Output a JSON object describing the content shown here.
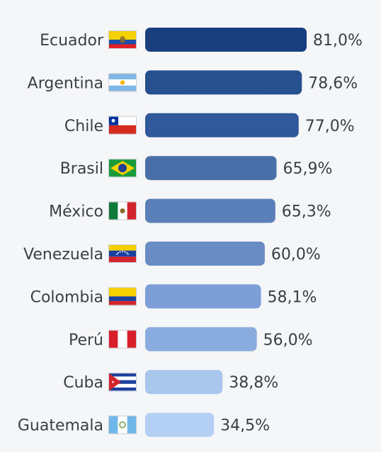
{
  "chart_data": {
    "type": "bar",
    "orientation": "horizontal",
    "title": "",
    "xlabel": "",
    "ylabel": "",
    "xlim": [
      0,
      100
    ],
    "grid": false,
    "categories": [
      "Ecuador",
      "Argentina",
      "Chile",
      "Brasil",
      "México",
      "Venezuela",
      "Colombia",
      "Perú",
      "Cuba",
      "Guatemala"
    ],
    "values": [
      81.0,
      78.6,
      77.0,
      65.9,
      65.3,
      60.0,
      58.1,
      56.0,
      38.8,
      34.5
    ],
    "value_labels": [
      "81,0%",
      "78,6%",
      "77,0%",
      "65,9%",
      "65,3%",
      "60,0%",
      "58,1%",
      "56,0%",
      "38,8%",
      "34,5%"
    ],
    "bar_colors": [
      "#1a3f7f",
      "#26508e",
      "#30589a",
      "#4a6fa8",
      "#5b7fb8",
      "#6a8cc5",
      "#7d9ed6",
      "#8aabdd",
      "#a9c6ec",
      "#b3d0f4"
    ],
    "flag_icons": [
      "flag-ecuador-icon",
      "flag-argentina-icon",
      "flag-chile-icon",
      "flag-brazil-icon",
      "flag-mexico-icon",
      "flag-venezuela-icon",
      "flag-colombia-icon",
      "flag-peru-icon",
      "flag-cuba-icon",
      "flag-guatemala-icon"
    ]
  }
}
